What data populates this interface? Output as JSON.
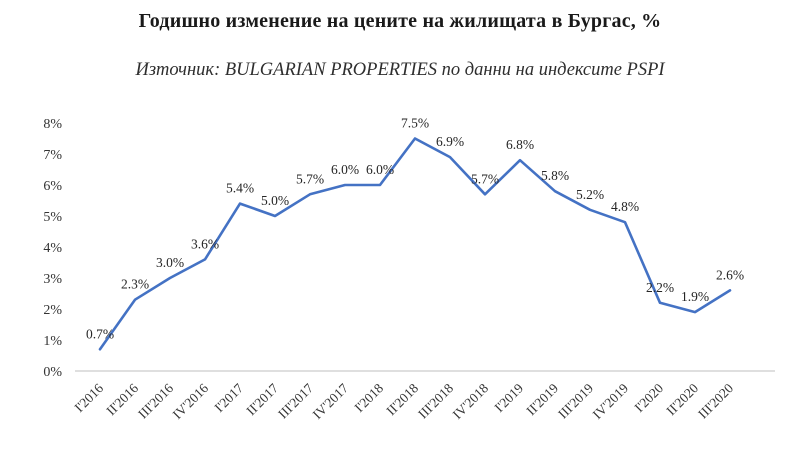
{
  "title": "Годишно изменение на цените на жилищата в Бургас, %",
  "subtitle": "Източник: BULGARIAN PROPERTIES по данни на индексите PSPI",
  "chart_data": {
    "type": "line",
    "title": "Годишно изменение на цените на жилищата в Бургас, %",
    "subtitle": "Източник: BULGARIAN PROPERTIES по данни на индексите PSPI",
    "categories": [
      "I'2016",
      "II'2016",
      "III'2016",
      "IV'2016",
      "I'2017",
      "II'2017",
      "III'2017",
      "IV'2017",
      "I'2018",
      "II'2018",
      "III'2018",
      "IV'2018",
      "I'2019",
      "II'2019",
      "III'2019",
      "IV'2019",
      "I'2020",
      "II'2020",
      "III'2020"
    ],
    "values": [
      0.7,
      2.3,
      3.0,
      3.6,
      5.4,
      5.0,
      5.7,
      6.0,
      6.0,
      7.5,
      6.9,
      5.7,
      6.8,
      5.8,
      5.2,
      4.8,
      2.2,
      1.9,
      2.6
    ],
    "labels": [
      "0.7%",
      "2.3%",
      "3.0%",
      "3.6%",
      "5.4%",
      "5.0%",
      "5.7%",
      "6.0%",
      "6.0%",
      "7.5%",
      "6.9%",
      "5.7%",
      "6.8%",
      "5.8%",
      "5.2%",
      "4.8%",
      "2.2%",
      "1.9%",
      "2.6%"
    ],
    "yticks": [
      "0%",
      "1%",
      "2%",
      "3%",
      "4%",
      "5%",
      "6%",
      "7%",
      "8%"
    ],
    "ylim": [
      0,
      8
    ],
    "xlabel": "",
    "ylabel": "",
    "grid": false,
    "legend": false,
    "line_color": "#4472C4",
    "axis_color": "#bfbfbf"
  }
}
